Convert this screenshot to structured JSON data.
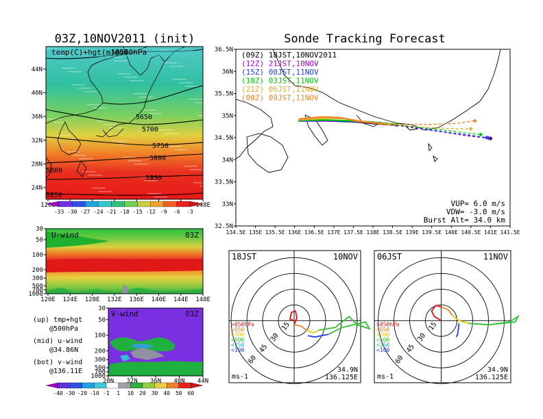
{
  "left_panel": {
    "title": "03Z,10NOV2011 (init)",
    "map_label": "temp(C)+hgt(m)@500hPa",
    "lat_labels": [
      "44N",
      "40N",
      "36N",
      "32N",
      "28N",
      "24N"
    ],
    "lon_labels": [
      "120E",
      "124E",
      "128E",
      "132E",
      "136E",
      "140E",
      "144E",
      "148E"
    ],
    "contour_labels": [
      "5600",
      "5650",
      "5700",
      "5750",
      "5800",
      "5800",
      "5850",
      "5850"
    ],
    "temp_colorbar": [
      "-33",
      "-30",
      "-27",
      "-24",
      "-21",
      "-18",
      "-15",
      "-12",
      "-9",
      "-6",
      "-3"
    ],
    "uwind_label": "U-wind",
    "uwind_time": "03Z",
    "pressure_labels": [
      "30",
      "50",
      "100",
      "200",
      "300",
      "500",
      "700",
      "1000"
    ],
    "vwind_label": "V-wind",
    "vwind_time": "03Z",
    "vwind_lat_labels": [
      "28N",
      "32N",
      "36N",
      "40N",
      "44N"
    ],
    "wind_colorbar": [
      "-40",
      "-30",
      "-20",
      "-10",
      "-1",
      "1",
      "10",
      "20",
      "30",
      "40",
      "50",
      "60"
    ],
    "legend_up": "(up) tmp+hgt",
    "legend_up2": "@500hPa",
    "legend_mid": "(mid) u-wind",
    "legend_mid2": "@34.86N",
    "legend_bot": "(bot) v-wind",
    "legend_bot2": "@136.11E"
  },
  "tracking": {
    "title": "Sonde Tracking Forecast",
    "legend": [
      {
        "text": "(09Z) 18JST,10NOV2011",
        "color": "#000000"
      },
      {
        "text": "(12Z) 21JST,10NOV",
        "color": "#a000c8"
      },
      {
        "text": "(15Z) 00JST,11NOV",
        "color": "#1e3cff"
      },
      {
        "text": "(18Z) 03JST,11NOV",
        "color": "#00c800"
      },
      {
        "text": "(21Z) 06JST,11NOV",
        "color": "#e6af2d"
      },
      {
        "text": "(00Z) 09JST,11NOV",
        "color": "#f08228"
      }
    ],
    "lat_labels": [
      "36.5N",
      "36N",
      "35.5N",
      "35N",
      "34.5N",
      "34N",
      "33.5N",
      "33N",
      "32.5N"
    ],
    "lon_labels": [
      "134.5E",
      "135E",
      "135.5E",
      "136E",
      "136.5E",
      "137E",
      "137.5E",
      "138E",
      "138.5E",
      "139E",
      "139.5E",
      "140E",
      "140.5E",
      "141E",
      "141.5E"
    ],
    "vup": "VUP= 6.0 m/s",
    "vdw": "VDW= -3.0 m/s",
    "burst": "Burst Alt= 34.0 km"
  },
  "chart_data": [
    {
      "type": "line",
      "title": "Sonde Tracking Forecast",
      "xlim": [
        134.5,
        141.5
      ],
      "ylim": [
        32.5,
        36.5
      ],
      "series": [
        {
          "name": "(09Z) 18JST,10NOV2011",
          "color": "#000000",
          "x": [
            136.1,
            136.8,
            137.5,
            138.0,
            138.6,
            139.2,
            139.9,
            140.5,
            141.0
          ],
          "y": [
            34.88,
            34.88,
            34.86,
            34.82,
            34.78,
            34.7,
            34.62,
            34.54,
            34.48
          ]
        },
        {
          "name": "(12Z) 21JST,10NOV",
          "color": "#a000c8",
          "x": [
            136.1,
            136.8,
            137.5,
            138.0,
            138.6,
            139.2,
            139.9,
            140.5,
            140.95
          ],
          "y": [
            34.88,
            34.88,
            34.87,
            34.83,
            34.78,
            34.7,
            34.61,
            34.53,
            34.49
          ]
        },
        {
          "name": "(15Z) 00JST,11NOV",
          "color": "#1e3cff",
          "x": [
            136.1,
            136.8,
            137.5,
            138.0,
            138.6,
            139.2,
            139.9,
            140.5,
            140.9
          ],
          "y": [
            34.88,
            34.89,
            34.87,
            34.84,
            34.79,
            34.71,
            34.62,
            34.55,
            34.5
          ]
        },
        {
          "name": "(18Z) 03JST,11NOV",
          "color": "#00c800",
          "x": [
            136.1,
            136.8,
            137.5,
            138.0,
            138.6,
            139.2,
            139.9,
            140.4,
            140.75
          ],
          "y": [
            34.89,
            34.9,
            34.88,
            34.85,
            34.8,
            34.73,
            34.66,
            34.6,
            34.57
          ]
        },
        {
          "name": "(21Z) 06JST,11NOV",
          "color": "#e6af2d",
          "x": [
            136.1,
            136.8,
            137.3,
            137.8,
            138.4,
            139.0,
            139.6,
            140.1,
            140.5
          ],
          "y": [
            34.9,
            34.94,
            34.93,
            34.86,
            34.8,
            34.75,
            34.72,
            34.7,
            34.7
          ]
        },
        {
          "name": "(00Z) 09JST,11NOV",
          "color": "#f08228",
          "x": [
            136.1,
            136.7,
            137.2,
            137.6,
            138.2,
            138.8,
            139.5,
            140.1,
            140.6
          ],
          "y": [
            34.92,
            34.97,
            34.95,
            34.87,
            34.82,
            34.8,
            34.8,
            34.82,
            34.88
          ]
        }
      ]
    },
    {
      "type": "line",
      "title": "18JST 10NOV",
      "rings": [
        "15",
        "30",
        "45",
        "60"
      ],
      "bands": [
        ">850hPa",
        "<850",
        "<700",
        "<500",
        "<250",
        "<100"
      ],
      "unit": "ms-1",
      "position": "34.9N",
      "position2": "136.125E"
    },
    {
      "type": "line",
      "title": "06JST 11NOV",
      "rings": [
        "15",
        "30",
        "45",
        "60"
      ],
      "bands": [
        ">850hPa",
        "<850",
        "<700",
        "<500",
        "<250",
        "<100"
      ],
      "unit": "ms-1",
      "position": "34.9N",
      "position2": "136.125E"
    }
  ],
  "hodo_left": {
    "time": "18JST",
    "date": "10NOV",
    "r15": "15",
    "r30": "30",
    "r45": "45",
    "r60": "60",
    "unit": "ms-1",
    "pos1": "34.9N",
    "pos2": "136.125E"
  },
  "hodo_right": {
    "time": "06JST",
    "date": "11NOV",
    "r15": "15",
    "r30": "30",
    "r45": "45",
    "r60": "60",
    "unit": "ms-1",
    "pos1": "34.9N",
    "pos2": "136.125E"
  },
  "bands": [
    {
      "text": ">850hPa",
      "color": "#e01010"
    },
    {
      "text": "<850",
      "color": "#f08228"
    },
    {
      "text": "<700",
      "color": "#e6c800"
    },
    {
      "text": "<500",
      "color": "#30c030"
    },
    {
      "text": "<250",
      "color": "#10b4c8"
    },
    {
      "text": "<100",
      "color": "#1e3cff"
    }
  ]
}
